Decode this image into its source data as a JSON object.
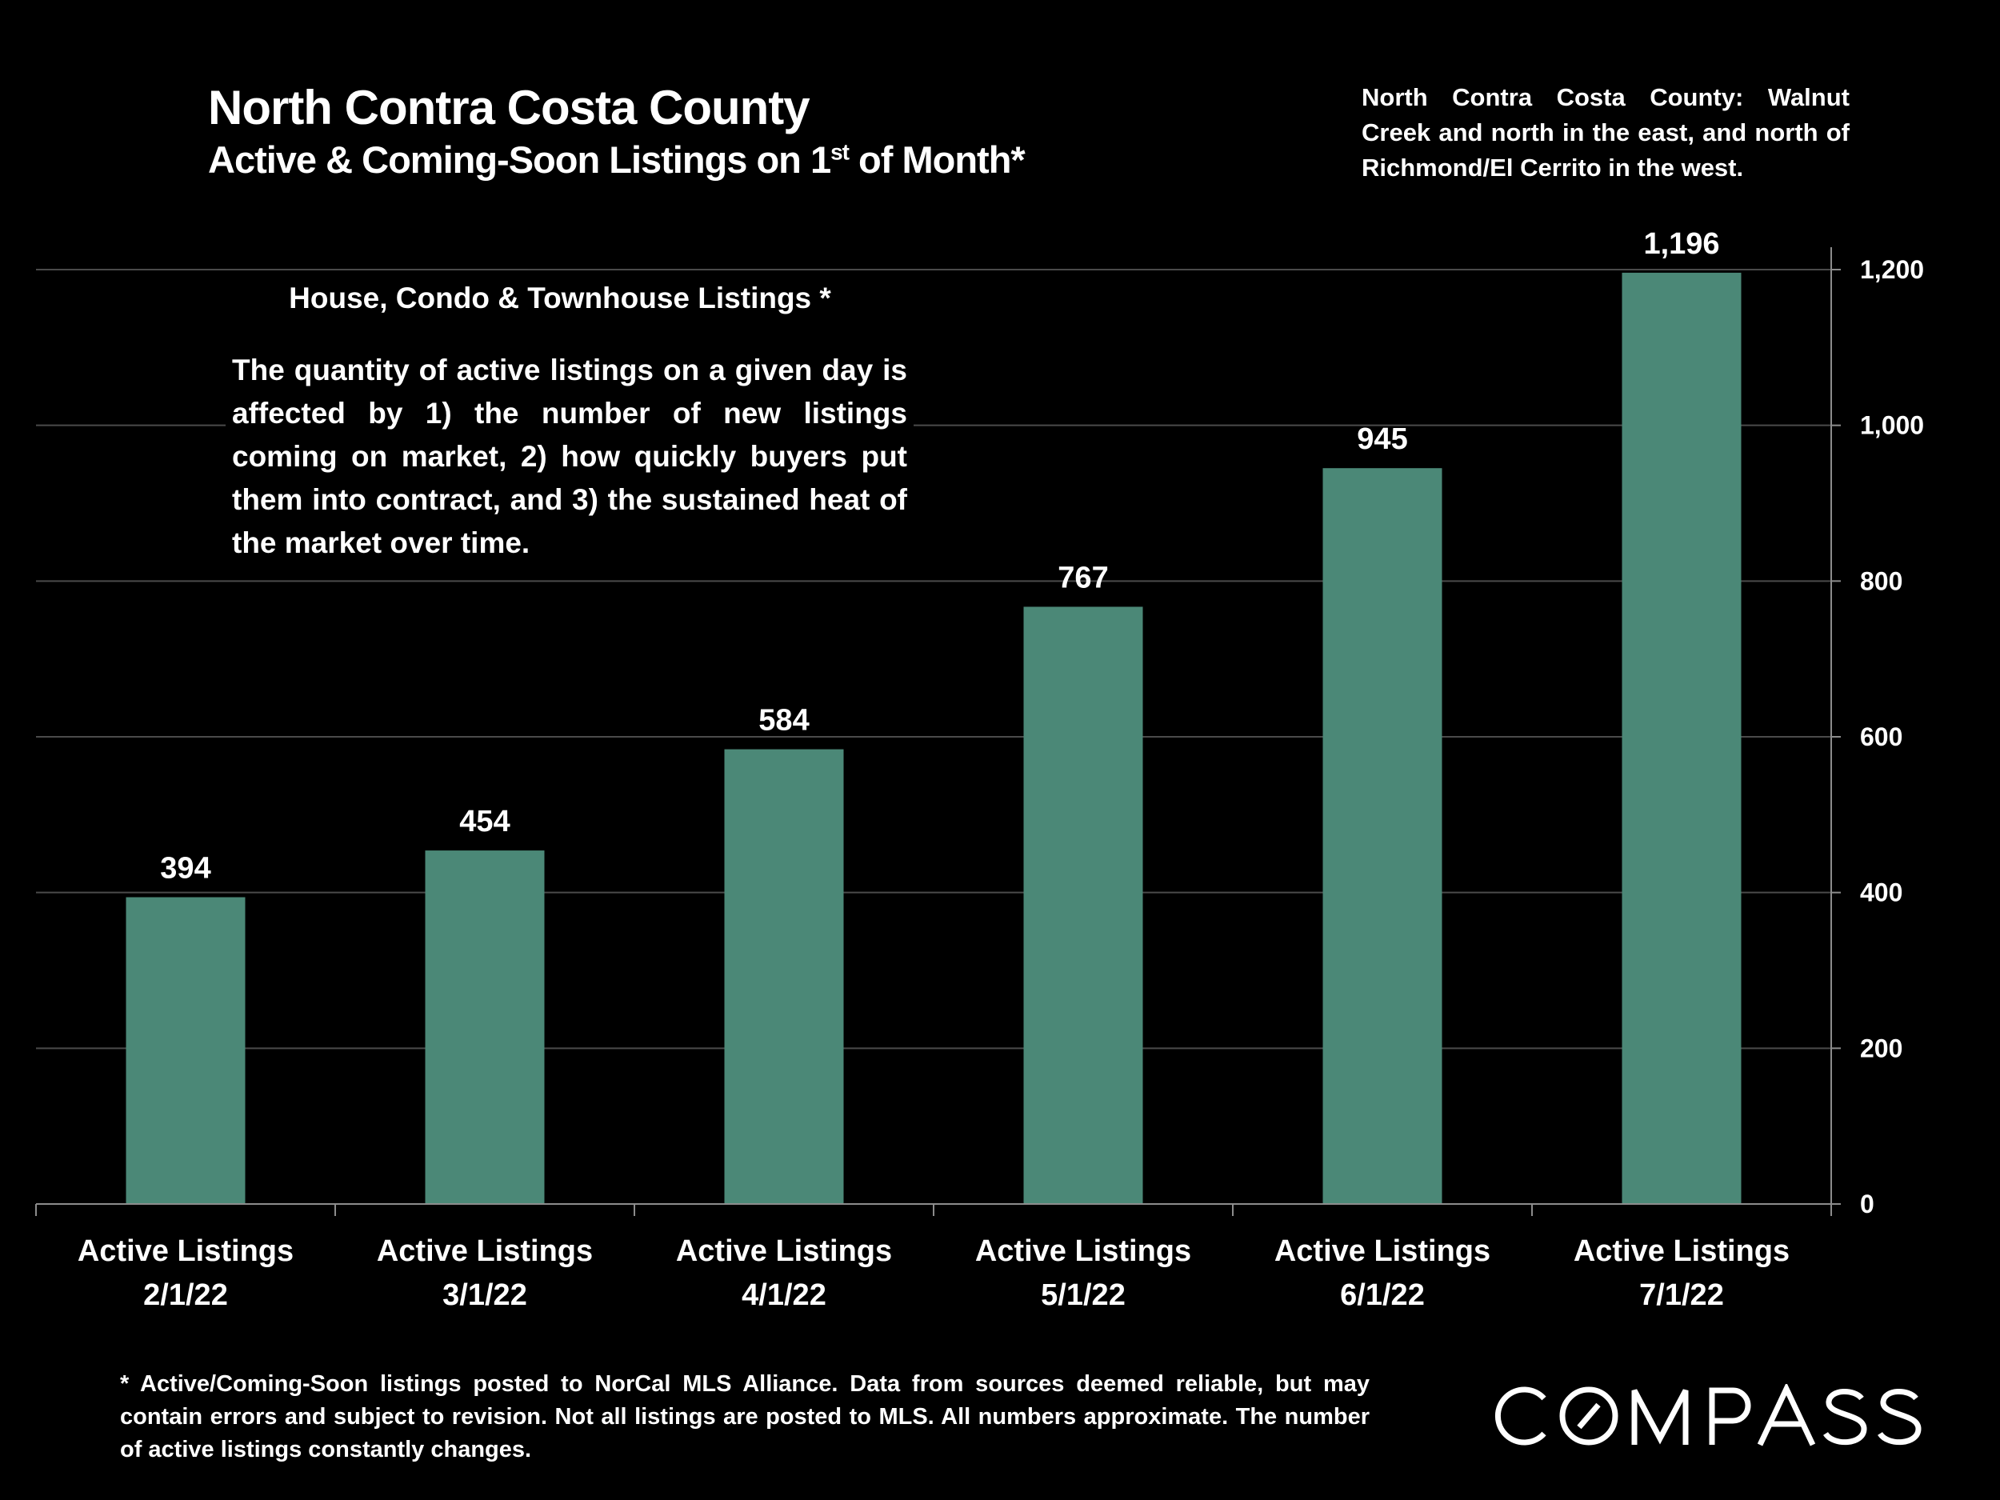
{
  "header": {
    "title": "North Contra Costa County",
    "subtitle_pre": "Active & Coming-Soon Listings on 1",
    "subtitle_sup": "st",
    "subtitle_post": " of Month*",
    "region_note": "North Contra Costa County: Walnut Creek and north in the east, and north of Richmond/El Cerrito in the west."
  },
  "annotation": {
    "heading": "House, Condo & Townhouse Listings *",
    "body": "The quantity of active listings on a given day is affected by 1) the number of new listings coming on market, 2) how quickly buyers put them into contract, and 3) the sustained heat of the market over time."
  },
  "footnote": "* Active/Coming-Soon listings posted to NorCal MLS Alliance.  Data from sources deemed reliable, but may contain errors and subject to revision.  Not all listings are posted to MLS. All numbers approximate. The number of active listings constantly changes.",
  "logo": {
    "text": "COMPASS"
  },
  "colors": {
    "bar": "#4b8877",
    "background": "#000000",
    "grid": "#4a4a4a",
    "axis": "#8c8c8c",
    "text": "#ffffff"
  },
  "chart_data": {
    "type": "bar",
    "title": "North Contra Costa County",
    "subtitle": "Active & Coming-Soon Listings on 1st of Month*",
    "categories": [
      [
        "Active Listings",
        "2/1/22"
      ],
      [
        "Active Listings",
        "3/1/22"
      ],
      [
        "Active Listings",
        "4/1/22"
      ],
      [
        "Active Listings",
        "5/1/22"
      ],
      [
        "Active Listings",
        "6/1/22"
      ],
      [
        "Active Listings",
        "7/1/22"
      ]
    ],
    "values": [
      394,
      454,
      584,
      767,
      945,
      1196
    ],
    "data_labels": [
      "394",
      "454",
      "584",
      "767",
      "945",
      "1,196"
    ],
    "xlabel": "",
    "ylabel": "",
    "ylim": [
      0,
      1200
    ],
    "yticks": [
      0,
      200,
      400,
      600,
      800,
      1000,
      1200
    ],
    "ytick_labels": [
      "0",
      "200",
      "400",
      "600",
      "800",
      "1,000",
      "1,200"
    ],
    "y_axis_side": "right",
    "grid": true,
    "legend": "none"
  }
}
